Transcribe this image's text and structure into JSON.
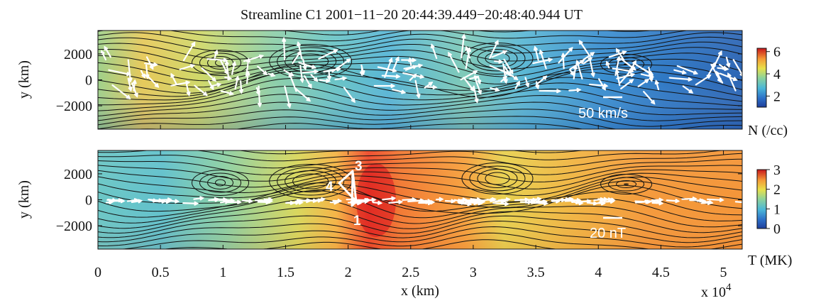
{
  "title": "Streamline  C1  2001−11−20  20:44:39.449−20:48:40.944 UT",
  "chart_data": [
    {
      "type": "heatmap",
      "panel": "top",
      "xlabel": "",
      "ylabel": "y (km)",
      "xlim": [
        0,
        51500
      ],
      "ylim": [
        -3800,
        3800
      ],
      "yticks": [
        2000,
        0,
        -2000
      ],
      "ytick_labels": [
        "2000",
        "0",
        "−2000"
      ],
      "colorbar": {
        "label": "N (/cc)",
        "range": [
          1,
          6.3
        ],
        "ticks": [
          "2",
          "4",
          "6"
        ],
        "tick_values": [
          2,
          4,
          6
        ]
      },
      "scale_label": "50 km/s",
      "vectors": "white flow velocity arrows along streamline",
      "contours": "black field-line contours"
    },
    {
      "type": "heatmap",
      "panel": "bottom",
      "xlabel": "x (km)",
      "ylabel": "y (km)",
      "xlim": [
        0,
        51500
      ],
      "ylim": [
        -3800,
        3800
      ],
      "xticks": [
        0,
        0.5,
        1,
        1.5,
        2,
        2.5,
        3,
        3.5,
        4,
        4.5,
        5
      ],
      "xtick_labels": [
        "0",
        "0.5",
        "1",
        "1.5",
        "2",
        "2.5",
        "3",
        "3.5",
        "4",
        "4.5",
        "5"
      ],
      "x_multiplier": "x 10",
      "x_multiplier_exp": "4",
      "yticks": [
        2000,
        0,
        -2000
      ],
      "ytick_labels": [
        "2000",
        "0",
        "−2000"
      ],
      "colorbar": {
        "label": "T (MK)",
        "range": [
          0,
          3
        ],
        "ticks": [
          "3",
          "2",
          "1",
          "0"
        ],
        "tick_values": [
          3,
          2,
          1,
          0
        ]
      },
      "scale_label": "20 nT",
      "tetrahedron_labels": [
        "1",
        "3",
        "4"
      ],
      "vectors": "white magnetic field arrows along streamline",
      "contours": "black field-line contours"
    }
  ]
}
